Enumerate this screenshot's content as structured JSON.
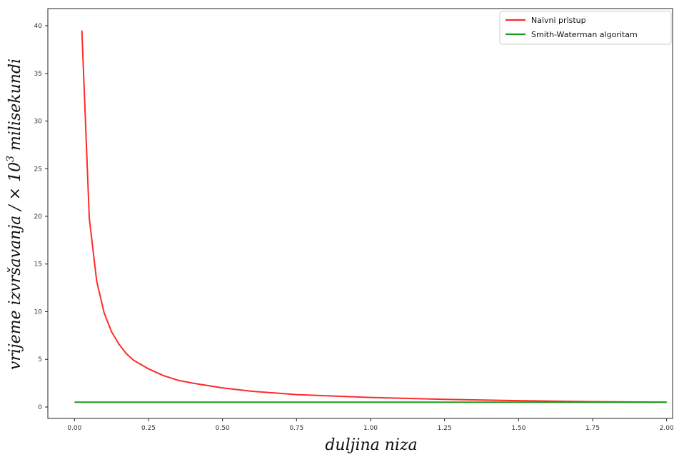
{
  "chart_data": {
    "type": "line",
    "title": "",
    "xlabel": "duljina niza",
    "ylabel_prefix": "vrijeme izvršavanja  / × 10",
    "ylabel_exponent": "3",
    "ylabel_suffix": " milisekundi",
    "xlim": [
      -0.09,
      2.02
    ],
    "ylim": [
      -1.2,
      41.8
    ],
    "xticks": [
      0.0,
      0.25,
      0.5,
      0.75,
      1.0,
      1.25,
      1.5,
      1.75,
      2.0
    ],
    "xtick_labels": [
      "0.00",
      "0.25",
      "0.50",
      "0.75",
      "1.00",
      "1.25",
      "1.50",
      "1.75",
      "2.00"
    ],
    "yticks": [
      0,
      5,
      10,
      15,
      20,
      25,
      30,
      35,
      40
    ],
    "ytick_labels": [
      "0",
      "5",
      "10",
      "15",
      "20",
      "25",
      "30",
      "35",
      "40"
    ],
    "grid": false,
    "legend_position": "top-right",
    "series": [
      {
        "name": "Naivni pristup",
        "color": "#ff2a2a",
        "x": [
          0.025,
          0.05,
          0.075,
          0.1,
          0.125,
          0.15,
          0.175,
          0.2,
          0.25,
          0.3,
          0.35,
          0.4,
          0.5,
          0.6,
          0.75,
          1.0,
          1.25,
          1.5,
          1.75,
          2.0
        ],
        "y": [
          39.5,
          19.8,
          13.2,
          9.9,
          7.9,
          6.6,
          5.6,
          4.9,
          4.0,
          3.3,
          2.8,
          2.5,
          2.0,
          1.65,
          1.3,
          1.0,
          0.8,
          0.66,
          0.56,
          0.5
        ]
      },
      {
        "name": "Smith-Waterman algoritam",
        "color": "#1a9c1a",
        "x": [
          0.0,
          2.0
        ],
        "y": [
          0.5,
          0.5
        ]
      }
    ]
  }
}
